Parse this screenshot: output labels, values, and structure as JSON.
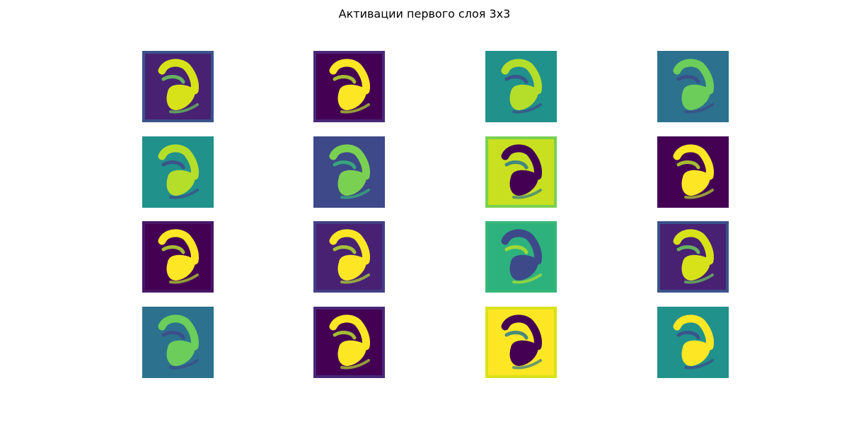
{
  "title": "Активации первого слоя 3x3",
  "panels": [
    {
      "bg": "#482173",
      "fg": "#d8e219",
      "fg2": "#6ccd5a",
      "edge": "#3b528b"
    },
    {
      "bg": "#440154",
      "fg": "#fde725",
      "fg2": "#b5de2b",
      "edge": "#482878"
    },
    {
      "bg": "#21918c",
      "fg": "#b5de2b",
      "fg2": "#3e4989",
      "edge": "#21918c"
    },
    {
      "bg": "#2c728e",
      "fg": "#6ccd5a",
      "fg2": "#3e4989",
      "edge": "#2c728e"
    },
    {
      "bg": "#21918c",
      "fg": "#b5de2b",
      "fg2": "#3e4989",
      "edge": "#21918c"
    },
    {
      "bg": "#3e4989",
      "fg": "#7ad151",
      "fg2": "#35b779",
      "edge": "#3e4989"
    },
    {
      "bg": "#c8e020",
      "fg": "#440154",
      "fg2": "#2a788e",
      "edge": "#7ad151"
    },
    {
      "bg": "#440154",
      "fg": "#fde725",
      "fg2": "#b5de2b",
      "edge": "#440154"
    },
    {
      "bg": "#440154",
      "fg": "#fde725",
      "fg2": "#b5de2b",
      "edge": "#481668"
    },
    {
      "bg": "#482173",
      "fg": "#fde725",
      "fg2": "#b5de2b",
      "edge": "#433e85"
    },
    {
      "bg": "#2db27d",
      "fg": "#3e4989",
      "fg2": "#b5de2b",
      "edge": "#35b779"
    },
    {
      "bg": "#482173",
      "fg": "#d8e219",
      "fg2": "#6ccd5a",
      "edge": "#3b528b"
    },
    {
      "bg": "#2c728e",
      "fg": "#6ccd5a",
      "fg2": "#3e4989",
      "edge": "#2c728e"
    },
    {
      "bg": "#440154",
      "fg": "#fde725",
      "fg2": "#b5de2b",
      "edge": "#482878"
    },
    {
      "bg": "#fde725",
      "fg": "#440154",
      "fg2": "#2a788e",
      "edge": "#d8e219"
    },
    {
      "bg": "#21918c",
      "fg": "#fde725",
      "fg2": "#3e4989",
      "edge": "#21918c"
    }
  ]
}
